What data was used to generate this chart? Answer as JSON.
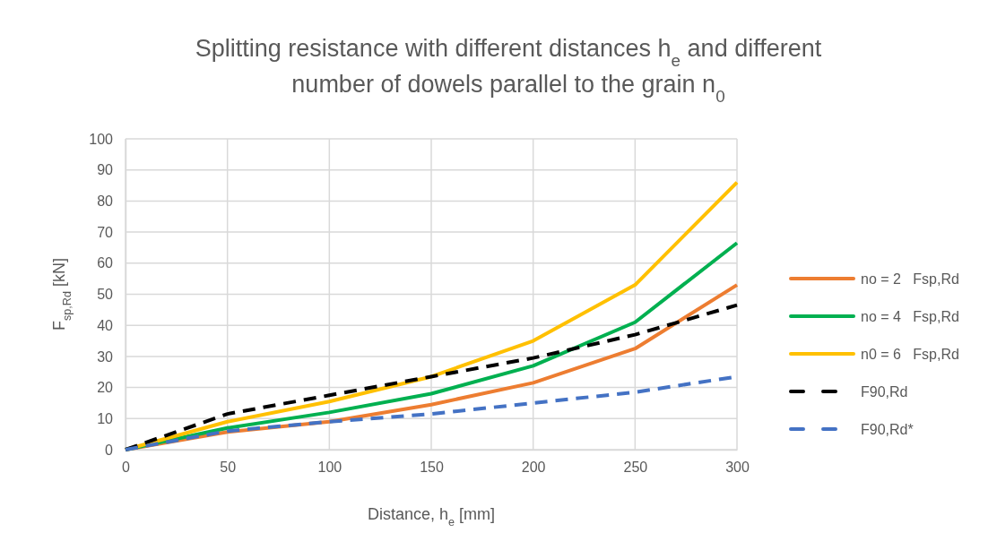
{
  "chart_data": {
    "type": "line",
    "title": "Splitting resistance with different distances h$_{e}$ and different number of dowels parallel to the grain n$_{0}$",
    "xlabel": "Distance, h$_{e}$ [mm]",
    "ylabel": "F$_{sp,Rd}$ [kN]",
    "x": [
      0,
      50,
      100,
      150,
      200,
      250,
      300
    ],
    "xlim": [
      0,
      300
    ],
    "xticks": [
      0,
      50,
      100,
      150,
      200,
      250,
      300
    ],
    "ylim": [
      0,
      100
    ],
    "yticks": [
      0,
      10,
      20,
      30,
      40,
      50,
      60,
      70,
      80,
      90,
      100
    ],
    "grid": true,
    "legend": "right",
    "marker": "none",
    "series": [
      {
        "name": "no = 2   Fsp,Rd",
        "color": "#ed7d31",
        "line_style": "solid",
        "values": [
          0,
          5.7,
          9,
          14.5,
          21.5,
          32.5,
          53
        ]
      },
      {
        "name": "no = 4   Fsp,Rd",
        "color": "#00b050",
        "line_style": "solid",
        "values": [
          0,
          7,
          12,
          18,
          27,
          41,
          66.5
        ]
      },
      {
        "name": "n0 = 6   Fsp,Rd",
        "color": "#ffc000",
        "line_style": "solid",
        "values": [
          0,
          9,
          15.5,
          23.5,
          35,
          53,
          86
        ]
      },
      {
        "name": "F90,Rd",
        "color": "#000000",
        "line_style": "dashed",
        "values": [
          0,
          11.5,
          17.5,
          23.5,
          29.5,
          37,
          46.5
        ]
      },
      {
        "name": "F90,Rd*",
        "color": "#4472c4",
        "line_style": "dashed",
        "values": [
          0,
          6,
          9,
          11.5,
          15,
          18.5,
          23.5
        ]
      }
    ]
  }
}
